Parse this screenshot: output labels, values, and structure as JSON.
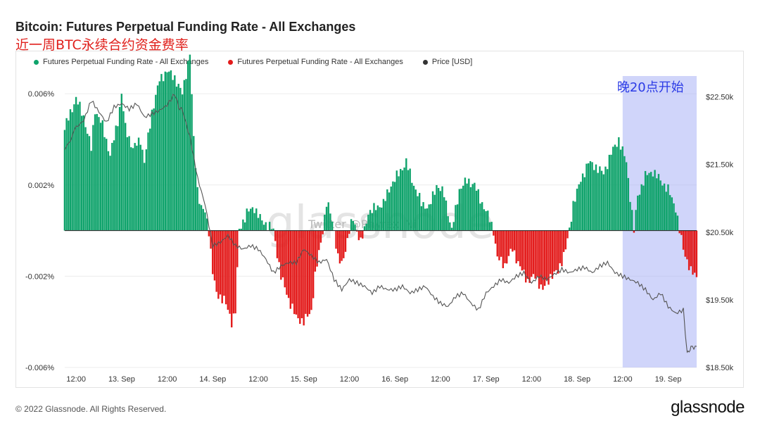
{
  "header": {
    "title": "Bitcoin: Futures Perpetual Funding Rate - All Exchanges",
    "subtitle": "近一周BTC永续合约资金费率"
  },
  "footer": {
    "copyright": "© 2022 Glassnode. All Rights Reserved.",
    "brand": "glassnode"
  },
  "watermark": {
    "logo": "glassnode",
    "handle": "Twitter @Phyrex_Ni"
  },
  "colors": {
    "positive": "#0fa36b",
    "negative": "#e31b1b",
    "price": "#555555",
    "highlight": "#aab2f5",
    "annotation": "#2b3be6"
  },
  "chart_data": {
    "type": "bar",
    "title": "Bitcoin: Futures Perpetual Funding Rate - All Exchanges",
    "legend": [
      {
        "name": "Futures Perpetual Funding Rate - All Exchanges",
        "color": "#0fa36b"
      },
      {
        "name": "Futures Perpetual Funding Rate - All Exchanges",
        "color": "#e31b1b"
      },
      {
        "name": "Price [USD]",
        "color": "#333333"
      }
    ],
    "legend_position": "top-left",
    "grid": true,
    "x_ticks": [
      "12:00",
      "13. Sep",
      "12:00",
      "14. Sep",
      "12:00",
      "15. Sep",
      "12:00",
      "16. Sep",
      "12:00",
      "17. Sep",
      "12:00",
      "18. Sep",
      "12:00",
      "19. Sep"
    ],
    "x_tick_hours": [
      -12,
      0,
      12,
      24,
      36,
      48,
      60,
      72,
      84,
      96,
      108,
      120,
      132,
      144
    ],
    "x_range_hours": [
      -15,
      151.5
    ],
    "y_left_ticks": [
      "0.006%",
      "0.002%",
      "-0.002%",
      "-0.006%"
    ],
    "y_left_values": [
      0.006,
      0.002,
      -0.002,
      -0.006
    ],
    "y_left_range": [
      -0.006,
      0.0069
    ],
    "y_right_ticks": [
      "$22.50k",
      "$21.50k",
      "$20.50k",
      "$19.50k",
      "$18.50k"
    ],
    "y_right_values": [
      22500,
      21500,
      20500,
      19500,
      18500
    ],
    "y_right_range": [
      18500,
      22850
    ],
    "funding_rate_series": {
      "name": "Futures Perpetual Funding Rate - All Exchanges",
      "unit": "%",
      "points": [
        [
          -15,
          0.0045
        ],
        [
          -12,
          0.0058
        ],
        [
          -10,
          0.005
        ],
        [
          -8,
          0.0036
        ],
        [
          -7,
          0.0053
        ],
        [
          -5,
          0.0046
        ],
        [
          -3,
          0.0033
        ],
        [
          -1,
          0.0048
        ],
        [
          0,
          0.006
        ],
        [
          1,
          0.0045
        ],
        [
          3,
          0.0036
        ],
        [
          5,
          0.004
        ],
        [
          6,
          0.003
        ],
        [
          8,
          0.0052
        ],
        [
          10,
          0.0066
        ],
        [
          12,
          0.007
        ],
        [
          14,
          0.0067
        ],
        [
          16,
          0.006
        ],
        [
          18,
          0.0078
        ],
        [
          19,
          0.004
        ],
        [
          20,
          0.0018
        ],
        [
          21,
          0.001
        ],
        [
          22,
          0.0008
        ],
        [
          23,
          0.0
        ],
        [
          24,
          -0.0018
        ],
        [
          25,
          -0.0028
        ],
        [
          27,
          -0.003
        ],
        [
          29,
          -0.004
        ],
        [
          30,
          -0.0035
        ],
        [
          31,
          0.0
        ],
        [
          33,
          0.0008
        ],
        [
          35,
          0.001
        ],
        [
          37,
          0.0004
        ],
        [
          39,
          0.0002
        ],
        [
          40,
          0.0
        ],
        [
          42,
          -0.002
        ],
        [
          44,
          -0.003
        ],
        [
          46,
          -0.0038
        ],
        [
          48,
          -0.004
        ],
        [
          50,
          -0.0035
        ],
        [
          51,
          -0.002
        ],
        [
          52,
          -0.001
        ],
        [
          53,
          0.0
        ],
        [
          54,
          0.0012
        ],
        [
          55,
          0.0008
        ],
        [
          56,
          0.0
        ],
        [
          57,
          -0.0012
        ],
        [
          58,
          -0.0015
        ],
        [
          59,
          -0.0008
        ],
        [
          60,
          0.0
        ],
        [
          61,
          0.0005
        ],
        [
          62,
          0.0
        ],
        [
          63,
          -0.0005
        ],
        [
          64,
          0.0
        ],
        [
          65,
          0.0008
        ],
        [
          67,
          0.001
        ],
        [
          69,
          0.0012
        ],
        [
          71,
          0.002
        ],
        [
          73,
          0.0025
        ],
        [
          75,
          0.003
        ],
        [
          76,
          0.0025
        ],
        [
          77,
          0.002
        ],
        [
          79,
          0.0012
        ],
        [
          81,
          0.001
        ],
        [
          83,
          0.002
        ],
        [
          85,
          0.0016
        ],
        [
          87,
          0.0
        ],
        [
          89,
          0.0018
        ],
        [
          91,
          0.0022
        ],
        [
          93,
          0.002
        ],
        [
          95,
          0.0012
        ],
        [
          97,
          0.0005
        ],
        [
          98,
          0.0
        ],
        [
          99,
          -0.0012
        ],
        [
          101,
          -0.0015
        ],
        [
          103,
          -0.0008
        ],
        [
          105,
          -0.0016
        ],
        [
          107,
          -0.0022
        ],
        [
          109,
          -0.002
        ],
        [
          111,
          -0.0026
        ],
        [
          113,
          -0.002
        ],
        [
          115,
          -0.0018
        ],
        [
          117,
          -0.0008
        ],
        [
          118,
          0.0
        ],
        [
          119,
          0.0012
        ],
        [
          121,
          0.0022
        ],
        [
          123,
          0.003
        ],
        [
          125,
          0.0028
        ],
        [
          127,
          0.0025
        ],
        [
          129,
          0.0034
        ],
        [
          131,
          0.004
        ],
        [
          133,
          0.003
        ],
        [
          134,
          0.0015
        ],
        [
          135,
          0.0
        ],
        [
          136,
          0.0015
        ],
        [
          138,
          0.0024
        ],
        [
          140,
          0.0026
        ],
        [
          142,
          0.0022
        ],
        [
          144,
          0.0018
        ],
        [
          146,
          0.001
        ],
        [
          147,
          0.0
        ],
        [
          148,
          -0.0008
        ],
        [
          150,
          -0.0018
        ],
        [
          151.5,
          -0.002
        ]
      ]
    },
    "price_series": {
      "name": "Price [USD]",
      "unit": "USD",
      "points": [
        [
          -15,
          21700
        ],
        [
          -12,
          22050
        ],
        [
          -10,
          22150
        ],
        [
          -8,
          22450
        ],
        [
          -6,
          22280
        ],
        [
          -4,
          22120
        ],
        [
          -2,
          22350
        ],
        [
          0,
          22400
        ],
        [
          2,
          22320
        ],
        [
          4,
          22400
        ],
        [
          6,
          22200
        ],
        [
          8,
          22250
        ],
        [
          10,
          22300
        ],
        [
          12,
          22380
        ],
        [
          14,
          22550
        ],
        [
          15,
          22350
        ],
        [
          16,
          22300
        ],
        [
          18,
          21900
        ],
        [
          20,
          21300
        ],
        [
          22,
          20900
        ],
        [
          24,
          20300
        ],
        [
          26,
          20350
        ],
        [
          28,
          20450
        ],
        [
          30,
          20300
        ],
        [
          32,
          20250
        ],
        [
          34,
          20300
        ],
        [
          36,
          20250
        ],
        [
          38,
          20100
        ],
        [
          40,
          19900
        ],
        [
          42,
          20000
        ],
        [
          44,
          20050
        ],
        [
          46,
          20050
        ],
        [
          48,
          20250
        ],
        [
          50,
          20150
        ],
        [
          52,
          20050
        ],
        [
          54,
          20100
        ],
        [
          56,
          19800
        ],
        [
          58,
          19650
        ],
        [
          60,
          19800
        ],
        [
          62,
          19750
        ],
        [
          64,
          19700
        ],
        [
          66,
          19600
        ],
        [
          68,
          19700
        ],
        [
          70,
          19650
        ],
        [
          72,
          19650
        ],
        [
          74,
          19700
        ],
        [
          76,
          19600
        ],
        [
          78,
          19650
        ],
        [
          80,
          19700
        ],
        [
          82,
          19550
        ],
        [
          84,
          19450
        ],
        [
          86,
          19400
        ],
        [
          88,
          19550
        ],
        [
          90,
          19600
        ],
        [
          92,
          19450
        ],
        [
          94,
          19350
        ],
        [
          96,
          19600
        ],
        [
          98,
          19700
        ],
        [
          100,
          19800
        ],
        [
          102,
          19750
        ],
        [
          104,
          19850
        ],
        [
          106,
          19900
        ],
        [
          108,
          19750
        ],
        [
          110,
          19850
        ],
        [
          112,
          19800
        ],
        [
          114,
          19880
        ],
        [
          116,
          19950
        ],
        [
          118,
          19900
        ],
        [
          120,
          19950
        ],
        [
          122,
          19980
        ],
        [
          124,
          19900
        ],
        [
          126,
          20000
        ],
        [
          128,
          20050
        ],
        [
          130,
          19900
        ],
        [
          132,
          19850
        ],
        [
          134,
          19800
        ],
        [
          136,
          19750
        ],
        [
          138,
          19650
        ],
        [
          140,
          19500
        ],
        [
          142,
          19600
        ],
        [
          144,
          19400
        ],
        [
          146,
          19300
        ],
        [
          148,
          19350
        ],
        [
          149,
          18700
        ],
        [
          150,
          18800
        ],
        [
          151.5,
          18800
        ]
      ]
    },
    "annotation": {
      "label": "晚20点开始",
      "start_hour": 132,
      "end_hour": 151.5
    }
  }
}
